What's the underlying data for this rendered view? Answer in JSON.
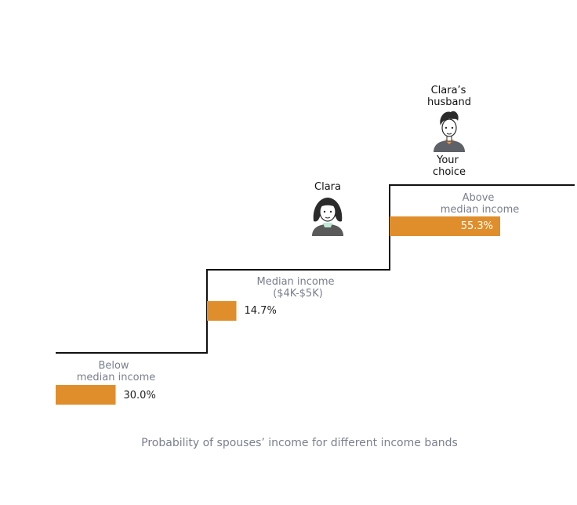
{
  "chart_data": {
    "type": "bar",
    "caption": "Probability of spouses’ income for different income bands",
    "bars": [
      {
        "label_lines": [
          "Below",
          "median income"
        ],
        "value": 30.0,
        "value_text": "30.0%",
        "color": "#e08e2b"
      },
      {
        "label_lines": [
          "Median income",
          "($4K-$5K)"
        ],
        "value": 14.7,
        "value_text": "14.7%",
        "color": "#e08e2b"
      },
      {
        "label_lines": [
          "Above",
          "median income"
        ],
        "value": 55.3,
        "value_text": "55.3%",
        "color": "#e08e2b"
      }
    ],
    "people": [
      {
        "label_lines": [
          "Clara"
        ],
        "icon": "woman-avatar-icon",
        "band": 1
      },
      {
        "label_lines": [
          "Clara’s",
          "husband"
        ],
        "icon": "man-avatar-icon",
        "band": 2,
        "sublabel_lines": [
          "Your",
          "choice"
        ]
      }
    ]
  }
}
